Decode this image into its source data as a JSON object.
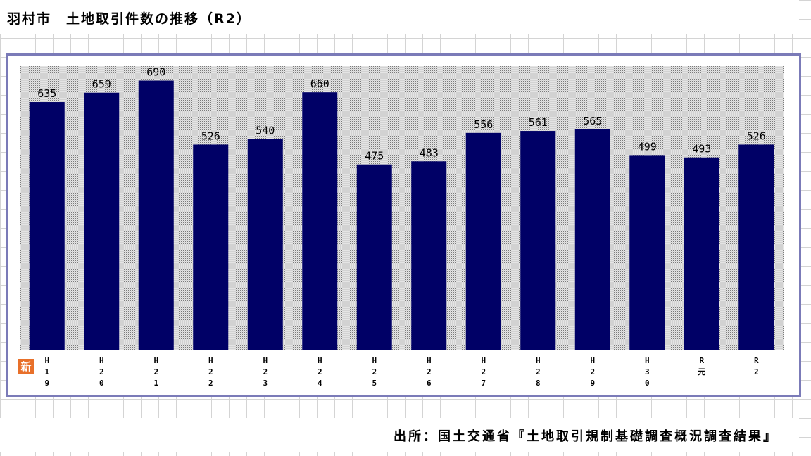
{
  "title": "羽村市　土地取引件数の推移（R2）",
  "source": "出所：国土交通省『土地取引規制基礎調査概況調査結果』",
  "badge": "新",
  "colors": {
    "bar": "#000066",
    "frame": "#7b7bb8",
    "badge": "#e8702a",
    "plot_bg": "#c8c8c8"
  },
  "chart_data": {
    "type": "bar",
    "title": "羽村市　土地取引件数の推移（R2）",
    "xlabel": "",
    "ylabel": "",
    "categories": [
      "H19",
      "H20",
      "H21",
      "H22",
      "H23",
      "H24",
      "H25",
      "H26",
      "H27",
      "H28",
      "H29",
      "H30",
      "R元",
      "R2"
    ],
    "category_labels": [
      [
        "H",
        "1",
        "9"
      ],
      [
        "H",
        "2",
        "0"
      ],
      [
        "H",
        "2",
        "1"
      ],
      [
        "H",
        "2",
        "2"
      ],
      [
        "H",
        "2",
        "3"
      ],
      [
        "H",
        "2",
        "4"
      ],
      [
        "H",
        "2",
        "5"
      ],
      [
        "H",
        "2",
        "6"
      ],
      [
        "H",
        "2",
        "7"
      ],
      [
        "H",
        "2",
        "8"
      ],
      [
        "H",
        "2",
        "9"
      ],
      [
        "H",
        "3",
        "0"
      ],
      [
        "R",
        "元"
      ],
      [
        "R",
        "2"
      ]
    ],
    "values": [
      635,
      659,
      690,
      526,
      540,
      660,
      475,
      483,
      556,
      561,
      565,
      499,
      493,
      526
    ],
    "ylim": [
      0,
      700
    ],
    "grid": false,
    "legend": "none"
  }
}
